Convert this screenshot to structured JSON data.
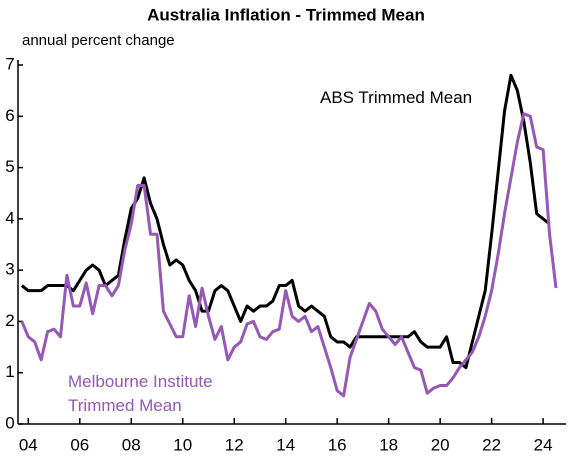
{
  "chart_data": {
    "type": "line",
    "title": "Australia Inflation - Trimmed Mean",
    "subtitle": "annual percent change",
    "xlim": [
      2003.6,
      2024.85
    ],
    "xticks": [
      {
        "value": 2004,
        "label": "04"
      },
      {
        "value": 2006,
        "label": "06"
      },
      {
        "value": 2008,
        "label": "08"
      },
      {
        "value": 2010,
        "label": "10"
      },
      {
        "value": 2012,
        "label": "12"
      },
      {
        "value": 2014,
        "label": "14"
      },
      {
        "value": 2016,
        "label": "16"
      },
      {
        "value": 2018,
        "label": "18"
      },
      {
        "value": 2020,
        "label": "20"
      },
      {
        "value": 2022,
        "label": "22"
      },
      {
        "value": 2024,
        "label": "24"
      }
    ],
    "ylim": [
      0,
      7
    ],
    "yticks": [
      0,
      1,
      2,
      3,
      4,
      5,
      6,
      7
    ],
    "series": [
      {
        "name": "ABS Trimmed Mean",
        "color": "#000000",
        "x": [
          2003.75,
          2004,
          2004.25,
          2004.5,
          2004.75,
          2005,
          2005.25,
          2005.5,
          2005.75,
          2006,
          2006.25,
          2006.5,
          2006.75,
          2007,
          2007.25,
          2007.5,
          2007.75,
          2008,
          2008.25,
          2008.5,
          2008.75,
          2009,
          2009.25,
          2009.5,
          2009.75,
          2010,
          2010.25,
          2010.5,
          2010.75,
          2011,
          2011.25,
          2011.5,
          2011.75,
          2012,
          2012.25,
          2012.5,
          2012.75,
          2013,
          2013.25,
          2013.5,
          2013.75,
          2014,
          2014.25,
          2014.5,
          2014.75,
          2015,
          2015.25,
          2015.5,
          2015.75,
          2016,
          2016.25,
          2016.5,
          2016.75,
          2017,
          2017.25,
          2017.5,
          2017.75,
          2018,
          2018.25,
          2018.5,
          2018.75,
          2019,
          2019.25,
          2019.5,
          2019.75,
          2020,
          2020.25,
          2020.5,
          2020.75,
          2021,
          2021.25,
          2021.5,
          2021.75,
          2022,
          2022.25,
          2022.5,
          2022.75,
          2023,
          2023.25,
          2023.5,
          2023.75,
          2024,
          2024.25
        ],
        "values": [
          2.7,
          2.6,
          2.6,
          2.6,
          2.7,
          2.7,
          2.7,
          2.7,
          2.6,
          2.8,
          3.0,
          3.1,
          3.0,
          2.7,
          2.8,
          2.9,
          3.6,
          4.2,
          4.4,
          4.8,
          4.3,
          4.0,
          3.5,
          3.1,
          3.2,
          3.1,
          2.8,
          2.6,
          2.2,
          2.2,
          2.6,
          2.7,
          2.6,
          2.3,
          2.0,
          2.3,
          2.2,
          2.3,
          2.3,
          2.4,
          2.7,
          2.7,
          2.8,
          2.3,
          2.2,
          2.3,
          2.2,
          2.1,
          1.7,
          1.6,
          1.6,
          1.5,
          1.7,
          1.7,
          1.7,
          1.7,
          1.7,
          1.7,
          1.7,
          1.7,
          1.7,
          1.8,
          1.6,
          1.5,
          1.5,
          1.5,
          1.7,
          1.2,
          1.2,
          1.1,
          1.6,
          2.1,
          2.6,
          3.7,
          4.9,
          6.1,
          6.8,
          6.5,
          5.9,
          5.1,
          4.1,
          4.0,
          3.9
        ]
      },
      {
        "name": "Melbourne Institute Trimmed Mean",
        "color": "#9657b5",
        "x": [
          2003.75,
          2004,
          2004.25,
          2004.5,
          2004.75,
          2005,
          2005.25,
          2005.5,
          2005.75,
          2006,
          2006.25,
          2006.5,
          2006.75,
          2007,
          2007.25,
          2007.5,
          2007.75,
          2008,
          2008.25,
          2008.5,
          2008.75,
          2009,
          2009.25,
          2009.5,
          2009.75,
          2010,
          2010.25,
          2010.5,
          2010.75,
          2011,
          2011.25,
          2011.5,
          2011.75,
          2012,
          2012.25,
          2012.5,
          2012.75,
          2013,
          2013.25,
          2013.5,
          2013.75,
          2014,
          2014.25,
          2014.5,
          2014.75,
          2015,
          2015.25,
          2015.5,
          2015.75,
          2016,
          2016.25,
          2016.5,
          2016.75,
          2017,
          2017.25,
          2017.5,
          2017.75,
          2018,
          2018.25,
          2018.5,
          2018.75,
          2019,
          2019.25,
          2019.5,
          2019.75,
          2020,
          2020.25,
          2020.5,
          2020.75,
          2021,
          2021.25,
          2021.5,
          2021.75,
          2022,
          2022.25,
          2022.5,
          2022.75,
          2023,
          2023.25,
          2023.5,
          2023.75,
          2024,
          2024.25,
          2024.5
        ],
        "values": [
          2.0,
          1.7,
          1.6,
          1.25,
          1.8,
          1.85,
          1.7,
          2.9,
          2.3,
          2.3,
          2.75,
          2.15,
          2.7,
          2.7,
          2.5,
          2.7,
          3.4,
          3.9,
          4.65,
          4.65,
          3.7,
          3.7,
          2.2,
          1.95,
          1.7,
          1.7,
          2.5,
          1.9,
          2.65,
          2.1,
          1.65,
          1.9,
          1.25,
          1.5,
          1.6,
          1.95,
          2.0,
          1.7,
          1.65,
          1.8,
          1.85,
          2.6,
          2.1,
          2.0,
          2.1,
          1.8,
          1.9,
          1.5,
          1.1,
          0.65,
          0.55,
          1.3,
          1.65,
          2.0,
          2.35,
          2.2,
          1.85,
          1.7,
          1.55,
          1.7,
          1.4,
          1.1,
          1.05,
          0.6,
          0.7,
          0.75,
          0.75,
          0.9,
          1.1,
          1.25,
          1.4,
          1.7,
          2.1,
          2.6,
          3.3,
          4.1,
          4.8,
          5.5,
          6.05,
          6.0,
          5.4,
          5.35,
          3.7,
          2.65
        ]
      }
    ]
  }
}
